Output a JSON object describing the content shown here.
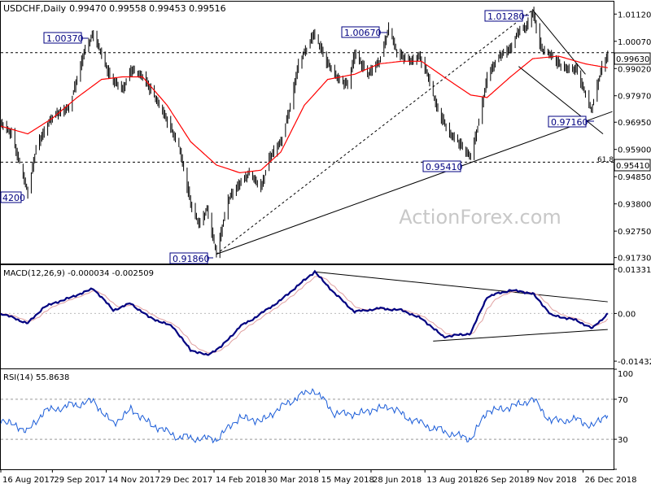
{
  "chart_data": {
    "type": "candlestick",
    "symbol": "USDCHF",
    "timeframe": "Daily",
    "ohlc_text": "0.99470 0.99558 0.99453 0.99516",
    "watermark": "ActionForex.com",
    "colors": {
      "candle": "#000000",
      "ma": "#ff0000",
      "macd": "#000080",
      "signal": "#e8a0a0",
      "rsi": "#1a5cd8",
      "trendline": "#000000"
    },
    "x_labels": [
      "16 Aug 2017",
      "29 Sep 2017",
      "14 Nov 2017",
      "29 Dec 2017",
      "14 Feb 2018",
      "30 Mar 2018",
      "15 May 2018",
      "28 Jun 2018",
      "13 Aug 2018",
      "26 Sep 2018",
      "9 Nov 2018",
      "26 Dec 2018"
    ],
    "price": {
      "ylim": [
        0.915,
        1.016
      ],
      "y_ticks": [
        "1.01120",
        "1.00070",
        "0.99020",
        "0.97970",
        "0.96950",
        "0.95900",
        "0.94850",
        "0.93800",
        "0.92750",
        "0.91730"
      ],
      "current": "0.99630",
      "levels": [
        {
          "value": "0.99630",
          "style": "dashed"
        },
        {
          "value": "0.95410",
          "style": "dashed",
          "note": "61.8"
        }
      ],
      "annotations": [
        "1.00370",
        "1.00670",
        "1.01280",
        "0.97160",
        "0.95410",
        "0.91860",
        "4200"
      ],
      "anchors": [
        {
          "date": "2017-08-16",
          "value": 0.969
        },
        {
          "date": "2017-08-25",
          "value": 0.965
        },
        {
          "date": "2017-09-08",
          "value": 0.942
        },
        {
          "date": "2017-09-15",
          "value": 0.96
        },
        {
          "date": "2017-09-29",
          "value": 0.972
        },
        {
          "date": "2017-10-13",
          "value": 0.975
        },
        {
          "date": "2017-10-27",
          "value": 0.998
        },
        {
          "date": "2017-11-03",
          "value": 1.0037
        },
        {
          "date": "2017-11-17",
          "value": 0.987
        },
        {
          "date": "2017-11-28",
          "value": 0.982
        },
        {
          "date": "2017-12-05",
          "value": 0.99
        },
        {
          "date": "2017-12-15",
          "value": 0.987
        },
        {
          "date": "2017-12-22",
          "value": 0.982
        },
        {
          "date": "2018-01-05",
          "value": 0.97
        },
        {
          "date": "2018-01-15",
          "value": 0.96
        },
        {
          "date": "2018-01-25",
          "value": 0.938
        },
        {
          "date": "2018-02-01",
          "value": 0.93
        },
        {
          "date": "2018-02-08",
          "value": 0.936
        },
        {
          "date": "2018-02-16",
          "value": 0.9186
        },
        {
          "date": "2018-02-26",
          "value": 0.94
        },
        {
          "date": "2018-03-08",
          "value": 0.946
        },
        {
          "date": "2018-03-16",
          "value": 0.95
        },
        {
          "date": "2018-03-26",
          "value": 0.944
        },
        {
          "date": "2018-04-02",
          "value": 0.956
        },
        {
          "date": "2018-04-12",
          "value": 0.962
        },
        {
          "date": "2018-04-20",
          "value": 0.976
        },
        {
          "date": "2018-04-27",
          "value": 0.992
        },
        {
          "date": "2018-05-10",
          "value": 1.0037
        },
        {
          "date": "2018-05-22",
          "value": 0.992
        },
        {
          "date": "2018-05-31",
          "value": 0.986
        },
        {
          "date": "2018-06-08",
          "value": 0.984
        },
        {
          "date": "2018-06-14",
          "value": 0.996
        },
        {
          "date": "2018-06-25",
          "value": 0.988
        },
        {
          "date": "2018-07-05",
          "value": 0.993
        },
        {
          "date": "2018-07-13",
          "value": 1.006
        },
        {
          "date": "2018-07-20",
          "value": 0.996
        },
        {
          "date": "2018-08-01",
          "value": 0.993
        },
        {
          "date": "2018-08-08",
          "value": 0.995
        },
        {
          "date": "2018-08-15",
          "value": 0.988
        },
        {
          "date": "2018-08-23",
          "value": 0.975
        },
        {
          "date": "2018-09-03",
          "value": 0.965
        },
        {
          "date": "2018-09-10",
          "value": 0.962
        },
        {
          "date": "2018-09-21",
          "value": 0.956
        },
        {
          "date": "2018-09-28",
          "value": 0.97
        },
        {
          "date": "2018-10-05",
          "value": 0.987
        },
        {
          "date": "2018-10-15",
          "value": 0.995
        },
        {
          "date": "2018-10-25",
          "value": 0.998
        },
        {
          "date": "2018-11-01",
          "value": 1.005
        },
        {
          "date": "2018-11-07",
          "value": 1.006
        },
        {
          "date": "2018-11-13",
          "value": 1.012
        },
        {
          "date": "2018-11-20",
          "value": 0.998
        },
        {
          "date": "2018-11-29",
          "value": 0.995
        },
        {
          "date": "2018-12-05",
          "value": 0.992
        },
        {
          "date": "2018-12-12",
          "value": 0.99
        },
        {
          "date": "2018-12-20",
          "value": 0.99
        },
        {
          "date": "2018-12-28",
          "value": 0.98
        },
        {
          "date": "2019-01-02",
          "value": 0.974
        },
        {
          "date": "2019-01-07",
          "value": 0.984
        },
        {
          "date": "2019-01-11",
          "value": 0.991
        },
        {
          "date": "2019-01-16",
          "value": 0.9952
        }
      ],
      "ma_anchors": [
        {
          "date": "2017-08-16",
          "value": 0.968
        },
        {
          "date": "2017-09-08",
          "value": 0.965
        },
        {
          "date": "2017-09-29",
          "value": 0.971
        },
        {
          "date": "2017-10-20",
          "value": 0.979
        },
        {
          "date": "2017-11-10",
          "value": 0.986
        },
        {
          "date": "2017-11-28",
          "value": 0.987
        },
        {
          "date": "2017-12-15",
          "value": 0.987
        },
        {
          "date": "2018-01-05",
          "value": 0.976
        },
        {
          "date": "2018-01-25",
          "value": 0.962
        },
        {
          "date": "2018-02-16",
          "value": 0.953
        },
        {
          "date": "2018-03-08",
          "value": 0.95
        },
        {
          "date": "2018-03-26",
          "value": 0.951
        },
        {
          "date": "2018-04-12",
          "value": 0.958
        },
        {
          "date": "2018-05-02",
          "value": 0.976
        },
        {
          "date": "2018-05-22",
          "value": 0.986
        },
        {
          "date": "2018-06-14",
          "value": 0.988
        },
        {
          "date": "2018-07-05",
          "value": 0.992
        },
        {
          "date": "2018-07-24",
          "value": 0.993
        },
        {
          "date": "2018-08-10",
          "value": 0.993
        },
        {
          "date": "2018-08-29",
          "value": 0.987
        },
        {
          "date": "2018-09-21",
          "value": 0.98
        },
        {
          "date": "2018-10-05",
          "value": 0.979
        },
        {
          "date": "2018-10-25",
          "value": 0.987
        },
        {
          "date": "2018-11-13",
          "value": 0.994
        },
        {
          "date": "2018-12-05",
          "value": 0.995
        },
        {
          "date": "2018-12-28",
          "value": 0.992
        },
        {
          "date": "2019-01-16",
          "value": 0.9905
        }
      ],
      "trendlines": [
        {
          "name": "rising-support",
          "style": "solid",
          "from": {
            "date": "2018-02-16",
            "value": 0.9186
          },
          "to": {
            "date": "2019-01-20",
            "value": 0.9736
          }
        },
        {
          "name": "channel-upper",
          "style": "solid",
          "from": {
            "date": "2018-11-13",
            "value": 1.0128
          },
          "to": {
            "date": "2018-12-28",
            "value": 0.988
          }
        },
        {
          "name": "channel-lower",
          "style": "solid",
          "from": {
            "date": "2018-11-01",
            "value": 0.991
          },
          "to": {
            "date": "2019-01-12",
            "value": 0.965
          }
        },
        {
          "name": "projection",
          "style": "dashed",
          "from": {
            "date": "2018-02-16",
            "value": 0.9186
          },
          "to": {
            "date": "2018-11-13",
            "value": 1.0128
          }
        }
      ]
    },
    "macd": {
      "label": "MACD(12,26,9) -0.000034 -0.002509",
      "ylim": [
        -0.0165,
        0.0145
      ],
      "y_ticks": [
        "0.013319",
        "0.00",
        "-0.014323"
      ],
      "anchors": [
        {
          "date": "2017-08-16",
          "value": 0.0
        },
        {
          "date": "2017-09-01",
          "value": -0.002
        },
        {
          "date": "2017-09-08",
          "value": -0.003
        },
        {
          "date": "2017-09-22",
          "value": 0.002
        },
        {
          "date": "2017-10-20",
          "value": 0.0055
        },
        {
          "date": "2017-11-03",
          "value": 0.0075
        },
        {
          "date": "2017-11-20",
          "value": 0.001
        },
        {
          "date": "2017-12-05",
          "value": 0.003
        },
        {
          "date": "2017-12-20",
          "value": -0.001
        },
        {
          "date": "2018-01-10",
          "value": -0.004
        },
        {
          "date": "2018-01-25",
          "value": -0.011
        },
        {
          "date": "2018-02-08",
          "value": -0.0125
        },
        {
          "date": "2018-02-20",
          "value": -0.01
        },
        {
          "date": "2018-03-08",
          "value": -0.004
        },
        {
          "date": "2018-03-22",
          "value": -0.001
        },
        {
          "date": "2018-04-12",
          "value": 0.004
        },
        {
          "date": "2018-05-02",
          "value": 0.01
        },
        {
          "date": "2018-05-11",
          "value": 0.0125
        },
        {
          "date": "2018-05-28",
          "value": 0.006
        },
        {
          "date": "2018-06-14",
          "value": 0.0005
        },
        {
          "date": "2018-07-05",
          "value": 0.0015
        },
        {
          "date": "2018-07-24",
          "value": 0.001
        },
        {
          "date": "2018-08-10",
          "value": -0.0015
        },
        {
          "date": "2018-08-29",
          "value": -0.007
        },
        {
          "date": "2018-09-21",
          "value": -0.006
        },
        {
          "date": "2018-10-05",
          "value": 0.005
        },
        {
          "date": "2018-10-25",
          "value": 0.007
        },
        {
          "date": "2018-11-13",
          "value": 0.006
        },
        {
          "date": "2018-11-29",
          "value": -0.0005
        },
        {
          "date": "2018-12-20",
          "value": -0.002
        },
        {
          "date": "2019-01-03",
          "value": -0.0045
        },
        {
          "date": "2019-01-16",
          "value": 0.0
        }
      ],
      "trendlines": [
        {
          "from": {
            "date": "2018-05-11",
            "value": 0.0125
          },
          "to": {
            "date": "2019-01-16",
            "value": 0.0035
          }
        },
        {
          "from": {
            "date": "2018-08-20",
            "value": -0.0083
          },
          "to": {
            "date": "2019-01-16",
            "value": -0.0048
          }
        }
      ]
    },
    "rsi": {
      "label": "RSI(14) 55.8638",
      "ylim": [
        0,
        100
      ],
      "y_ticks": [
        100,
        70,
        30,
        0
      ],
      "levels": [
        70,
        30
      ],
      "anchors": [
        {
          "date": "2017-08-16",
          "value": 50
        },
        {
          "date": "2017-09-08",
          "value": 38
        },
        {
          "date": "2017-09-22",
          "value": 58
        },
        {
          "date": "2017-10-20",
          "value": 65
        },
        {
          "date": "2017-11-03",
          "value": 68
        },
        {
          "date": "2017-11-20",
          "value": 45
        },
        {
          "date": "2017-12-05",
          "value": 60
        },
        {
          "date": "2017-12-22",
          "value": 45
        },
        {
          "date": "2018-01-15",
          "value": 32
        },
        {
          "date": "2018-02-16",
          "value": 30
        },
        {
          "date": "2018-03-08",
          "value": 52
        },
        {
          "date": "2018-03-26",
          "value": 48
        },
        {
          "date": "2018-04-20",
          "value": 68
        },
        {
          "date": "2018-05-10",
          "value": 80
        },
        {
          "date": "2018-05-28",
          "value": 56
        },
        {
          "date": "2018-06-14",
          "value": 55
        },
        {
          "date": "2018-07-13",
          "value": 63
        },
        {
          "date": "2018-08-01",
          "value": 50
        },
        {
          "date": "2018-08-23",
          "value": 40
        },
        {
          "date": "2018-09-21",
          "value": 30
        },
        {
          "date": "2018-10-05",
          "value": 58
        },
        {
          "date": "2018-10-25",
          "value": 62
        },
        {
          "date": "2018-11-13",
          "value": 70
        },
        {
          "date": "2018-11-29",
          "value": 48
        },
        {
          "date": "2018-12-20",
          "value": 50
        },
        {
          "date": "2019-01-03",
          "value": 43
        },
        {
          "date": "2019-01-16",
          "value": 55.86
        }
      ]
    }
  }
}
